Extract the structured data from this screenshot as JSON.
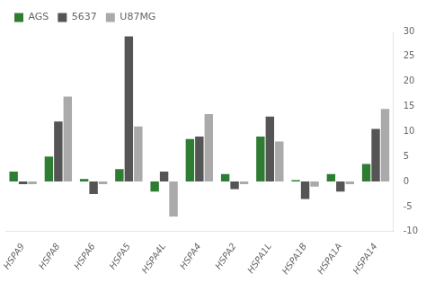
{
  "chart_data": {
    "type": "bar",
    "categories": [
      "HSPA9",
      "HSPA8",
      "HSPA6",
      "HSPA5",
      "HSPA4L",
      "HSPA4",
      "HSPA2",
      "HSPA1L",
      "HSPA1B",
      "HSPA1A",
      "HSPA14"
    ],
    "series": [
      {
        "name": "AGS",
        "color": "#2e7d32",
        "values": [
          2.0,
          5.0,
          0.5,
          2.5,
          -2.0,
          8.5,
          1.5,
          9.0,
          0.3,
          1.5,
          3.5
        ]
      },
      {
        "name": "5637",
        "color": "#555555",
        "values": [
          -0.5,
          12.0,
          -2.5,
          29.0,
          2.0,
          9.0,
          -1.5,
          13.0,
          -3.5,
          -2.0,
          10.5
        ]
      },
      {
        "name": "U87MG",
        "color": "#aaaaaa",
        "values": [
          -0.5,
          17.0,
          -0.5,
          11.0,
          -7.0,
          13.5,
          -0.5,
          8.0,
          -1.0,
          -0.5,
          14.5
        ]
      }
    ],
    "ylim": [
      -10,
      30
    ],
    "yticks": [
      -10,
      -5,
      0,
      5,
      10,
      15,
      20,
      25,
      30
    ],
    "grid": false,
    "legend": "upper left"
  }
}
